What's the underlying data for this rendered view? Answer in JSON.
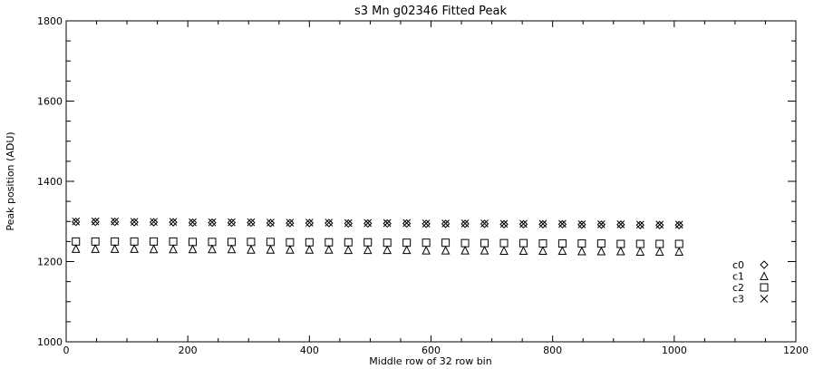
{
  "chart_data": {
    "type": "scatter",
    "title": "s3 Mn g02346 Fitted Peak",
    "xlabel": "Middle row of 32 row bin",
    "ylabel": "Peak position (ADU)",
    "xlim": [
      0,
      1200
    ],
    "ylim": [
      1000,
      1800
    ],
    "x_ticks": [
      0,
      200,
      400,
      600,
      800,
      1000,
      1200
    ],
    "y_ticks": [
      1000,
      1200,
      1400,
      1600,
      1800
    ],
    "legend_position": "lower-right",
    "x": [
      16,
      48,
      80,
      112,
      144,
      176,
      208,
      240,
      272,
      304,
      336,
      368,
      400,
      432,
      464,
      496,
      528,
      560,
      592,
      624,
      656,
      688,
      720,
      752,
      784,
      816,
      848,
      880,
      912,
      944,
      976,
      1008
    ],
    "series": [
      {
        "name": "c0",
        "marker": "diamond",
        "values": [
          1299,
          1299,
          1299,
          1298,
          1298,
          1298,
          1297,
          1297,
          1297,
          1297,
          1296,
          1296,
          1296,
          1296,
          1295,
          1295,
          1295,
          1295,
          1294,
          1294,
          1294,
          1294,
          1293,
          1293,
          1293,
          1293,
          1292,
          1292,
          1292,
          1291,
          1291,
          1291
        ]
      },
      {
        "name": "c1",
        "marker": "triangle",
        "values": [
          1232,
          1232,
          1232,
          1232,
          1231,
          1231,
          1231,
          1231,
          1231,
          1230,
          1230,
          1230,
          1230,
          1230,
          1229,
          1229,
          1229,
          1229,
          1228,
          1228,
          1228,
          1228,
          1227,
          1227,
          1227,
          1227,
          1226,
          1226,
          1226,
          1225,
          1225,
          1225
        ]
      },
      {
        "name": "c2",
        "marker": "square",
        "values": [
          1250,
          1250,
          1250,
          1250,
          1250,
          1250,
          1249,
          1249,
          1249,
          1249,
          1249,
          1248,
          1248,
          1248,
          1248,
          1248,
          1247,
          1247,
          1247,
          1247,
          1246,
          1246,
          1246,
          1246,
          1245,
          1245,
          1245,
          1245,
          1244,
          1244,
          1244,
          1244
        ]
      },
      {
        "name": "c3",
        "marker": "x",
        "values": [
          1300,
          1300,
          1300,
          1299,
          1299,
          1299,
          1298,
          1298,
          1298,
          1298,
          1297,
          1297,
          1297,
          1297,
          1296,
          1296,
          1296,
          1296,
          1295,
          1295,
          1295,
          1295,
          1294,
          1294,
          1294,
          1294,
          1293,
          1293,
          1293,
          1292,
          1292,
          1292
        ]
      }
    ]
  }
}
